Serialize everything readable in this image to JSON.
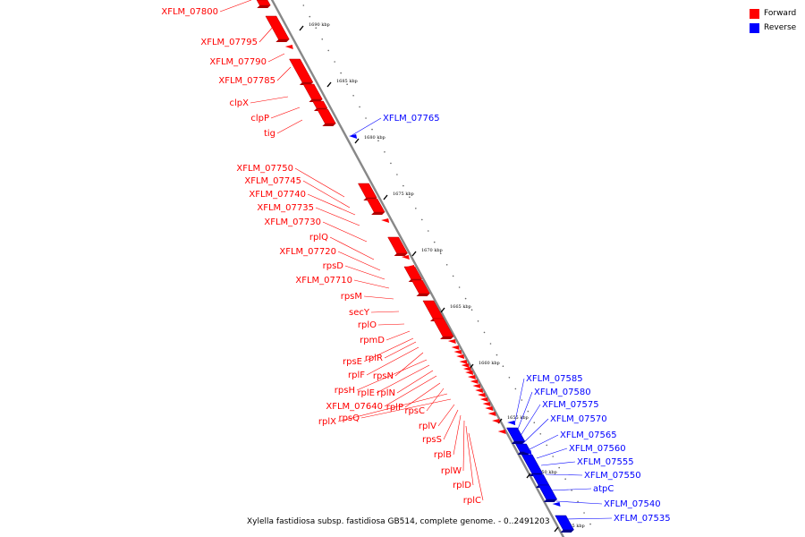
{
  "legend": [
    {
      "label": "Forward",
      "color": "#ff0000"
    },
    {
      "label": "Reverse",
      "color": "#0000ff"
    }
  ],
  "caption": "Xylella fastidiosa subsp. fastidiosa GB514, complete genome. - 0..2491203",
  "colors": {
    "forward": "#ff0000",
    "reverse": "#0000ff",
    "backbone": "#888888"
  },
  "ticks": [
    {
      "label": "1690 kbp"
    },
    {
      "label": "1685 kbp"
    },
    {
      "label": "1680 kbp"
    },
    {
      "label": "1675 kbp"
    },
    {
      "label": "1670 kbp"
    },
    {
      "label": "1665 kbp"
    },
    {
      "label": "1660 kbp"
    },
    {
      "label": "1655 kbp"
    },
    {
      "label": "1650 kbp"
    },
    {
      "label": "1645 kbp"
    }
  ],
  "forward_genes": [
    {
      "label": "XFLM_07800"
    },
    {
      "label": "XFLM_07795"
    },
    {
      "label": "XFLM_07790"
    },
    {
      "label": "XFLM_07785"
    },
    {
      "label": "clpX"
    },
    {
      "label": "clpP"
    },
    {
      "label": "tig"
    },
    {
      "label": "XFLM_07750"
    },
    {
      "label": "XFLM_07745"
    },
    {
      "label": "XFLM_07740"
    },
    {
      "label": "XFLM_07735"
    },
    {
      "label": "XFLM_07730"
    },
    {
      "label": "rplQ"
    },
    {
      "label": "XFLM_07720"
    },
    {
      "label": "rpsD"
    },
    {
      "label": "XFLM_07710"
    },
    {
      "label": "rpsM"
    },
    {
      "label": "secY"
    },
    {
      "label": "rplO"
    },
    {
      "label": "rpmD"
    },
    {
      "label": "rpsE"
    },
    {
      "label": "rplR"
    },
    {
      "label": "rplF"
    },
    {
      "label": "rpsN"
    },
    {
      "label": "rpsH"
    },
    {
      "label": "rplE"
    },
    {
      "label": "rplN"
    },
    {
      "label": "XFLM_07640"
    },
    {
      "label": "rplP"
    },
    {
      "label": "rpsC"
    },
    {
      "label": "rplX"
    },
    {
      "label": "rpsQ"
    },
    {
      "label": "rplV"
    },
    {
      "label": "rpsS"
    },
    {
      "label": "rplB"
    },
    {
      "label": "rplW"
    },
    {
      "label": "rplD"
    },
    {
      "label": "rplC"
    }
  ],
  "reverse_genes": [
    {
      "label": "XFLM_07765"
    },
    {
      "label": "XFLM_07585"
    },
    {
      "label": "XFLM_07580"
    },
    {
      "label": "XFLM_07575"
    },
    {
      "label": "XFLM_07570"
    },
    {
      "label": "XFLM_07565"
    },
    {
      "label": "XFLM_07560"
    },
    {
      "label": "XFLM_07555"
    },
    {
      "label": "XFLM_07550"
    },
    {
      "label": "atpC"
    },
    {
      "label": "XFLM_07540"
    },
    {
      "label": "XFLM_07535"
    }
  ]
}
